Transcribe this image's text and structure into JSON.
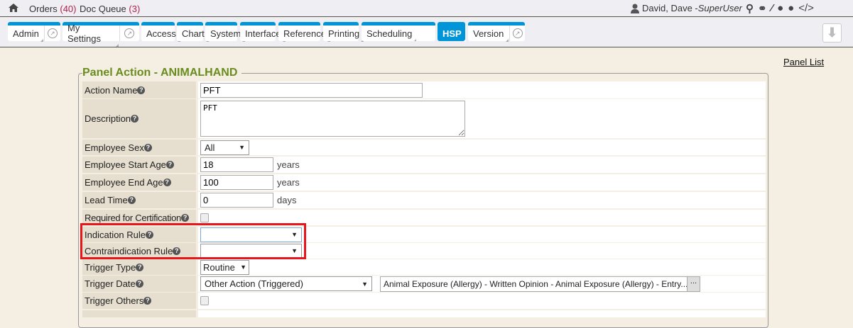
{
  "topbar": {
    "orders_label": "Orders",
    "orders_count": "(40)",
    "docqueue_label": "Doc Queue",
    "docqueue_count": "(3)",
    "user_name": "David, Dave - ",
    "user_role": "SuperUser",
    "icons": [
      "home-icon",
      "user-icon",
      "search-icon",
      "link-icon",
      "magic-wand-icon",
      "globe-icon",
      "help-icon",
      "code-icon"
    ]
  },
  "tabs": [
    {
      "label": "Admin",
      "ext": true
    },
    {
      "label": "My Settings",
      "ext": true
    },
    {
      "label": "Access"
    },
    {
      "label": "Chart"
    },
    {
      "label": "System"
    },
    {
      "label": "Interface"
    },
    {
      "label": "Reference"
    },
    {
      "label": "Printing"
    },
    {
      "label": "Scheduling"
    },
    {
      "label": "HSP",
      "active": true
    },
    {
      "label": "Version",
      "ext": true
    }
  ],
  "accent_color": "#0095d9",
  "panel_list_link": "Panel List",
  "panel": {
    "title": "Panel Action - ANIMALHAND",
    "fields": {
      "action_name": {
        "label": "Action Name",
        "value": "PFT"
      },
      "description": {
        "label": "Description",
        "value": "PFT"
      },
      "employee_sex": {
        "label": "Employee Sex",
        "value": "All"
      },
      "start_age": {
        "label": "Employee Start Age",
        "value": "18",
        "unit": "years"
      },
      "end_age": {
        "label": "Employee End Age",
        "value": "100",
        "unit": "years"
      },
      "lead_time": {
        "label": "Lead Time",
        "value": "0",
        "unit": "days"
      },
      "required_cert": {
        "label": "Required for Certification",
        "checked": false
      },
      "indication_rule": {
        "label": "Indication Rule",
        "value": ""
      },
      "contraindication_rule": {
        "label": "Contraindication Rule",
        "value": ""
      },
      "trigger_type": {
        "label": "Trigger Type",
        "value": "Routine"
      },
      "trigger_date": {
        "label": "Trigger Date",
        "value": "Other Action (Triggered)",
        "action": "Animal Exposure (Allergy) - Written Opinion - Animal Exposure (Allergy) - Entry...",
        "picker_button": "..."
      },
      "trigger_others": {
        "label": "Trigger Others",
        "checked": false
      }
    }
  },
  "highlight_color": "#e8151b"
}
